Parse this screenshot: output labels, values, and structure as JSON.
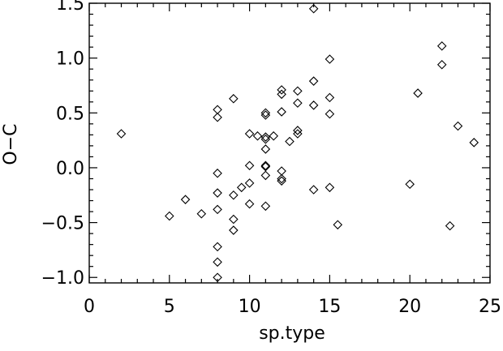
{
  "chart_data": {
    "type": "scatter",
    "title": "",
    "xlabel": "sp.type",
    "ylabel": "O−C",
    "xlim": [
      0,
      25
    ],
    "ylim": [
      -1.05,
      1.5
    ],
    "grid": false,
    "legend": "none",
    "marker": "diamond",
    "marker_color": "#000000",
    "x_ticks": [
      {
        "value": 0,
        "label": "0"
      },
      {
        "value": 5,
        "label": "5"
      },
      {
        "value": 10,
        "label": "10"
      },
      {
        "value": 15,
        "label": "15"
      },
      {
        "value": 20,
        "label": "20"
      },
      {
        "value": 25,
        "label": "25"
      }
    ],
    "x_minor_step": 1,
    "y_ticks": [
      {
        "value": -1.0,
        "label": "−1.0"
      },
      {
        "value": -0.5,
        "label": "−0.5"
      },
      {
        "value": 0.0,
        "label": "0.0"
      },
      {
        "value": 0.5,
        "label": "0.5"
      },
      {
        "value": 1.0,
        "label": "1.0"
      },
      {
        "value": 1.5,
        "label": "1.5"
      }
    ],
    "y_minor_step": 0.1,
    "series": [
      {
        "points": [
          [
            2,
            0.31
          ],
          [
            5,
            -0.44
          ],
          [
            6,
            -0.29
          ],
          [
            7,
            -0.42
          ],
          [
            8,
            0.53
          ],
          [
            8,
            0.46
          ],
          [
            8,
            -0.05
          ],
          [
            8,
            -0.23
          ],
          [
            8,
            -0.38
          ],
          [
            8,
            -0.72
          ],
          [
            8,
            -0.86
          ],
          [
            8,
            -1.0
          ],
          [
            9,
            0.63
          ],
          [
            9,
            -0.25
          ],
          [
            9,
            -0.47
          ],
          [
            9,
            -0.57
          ],
          [
            9.5,
            -0.18
          ],
          [
            10,
            0.31
          ],
          [
            10,
            0.02
          ],
          [
            10,
            -0.14
          ],
          [
            10,
            -0.33
          ],
          [
            10.5,
            0.29
          ],
          [
            11,
            0.5
          ],
          [
            11,
            0.48
          ],
          [
            11,
            0.28
          ],
          [
            11,
            0.26
          ],
          [
            11,
            0.17
          ],
          [
            11,
            0.02
          ],
          [
            11,
            0.01
          ],
          [
            11,
            -0.07
          ],
          [
            11,
            -0.35
          ],
          [
            11.5,
            0.29
          ],
          [
            12,
            0.71
          ],
          [
            12,
            0.67
          ],
          [
            12,
            0.51
          ],
          [
            12,
            -0.03
          ],
          [
            12,
            -0.1
          ],
          [
            12,
            -0.12
          ],
          [
            12.5,
            0.24
          ],
          [
            13,
            0.7
          ],
          [
            13,
            0.59
          ],
          [
            13,
            0.34
          ],
          [
            13,
            0.31
          ],
          [
            14,
            1.45
          ],
          [
            14,
            0.79
          ],
          [
            14,
            0.57
          ],
          [
            14,
            -0.2
          ],
          [
            15,
            0.99
          ],
          [
            15,
            0.64
          ],
          [
            15,
            0.49
          ],
          [
            15,
            -0.18
          ],
          [
            15.5,
            -0.52
          ],
          [
            20,
            -0.15
          ],
          [
            20.5,
            0.68
          ],
          [
            22,
            1.11
          ],
          [
            22,
            0.94
          ],
          [
            22.5,
            -0.53
          ],
          [
            23,
            0.38
          ],
          [
            24,
            0.23
          ]
        ]
      }
    ]
  }
}
